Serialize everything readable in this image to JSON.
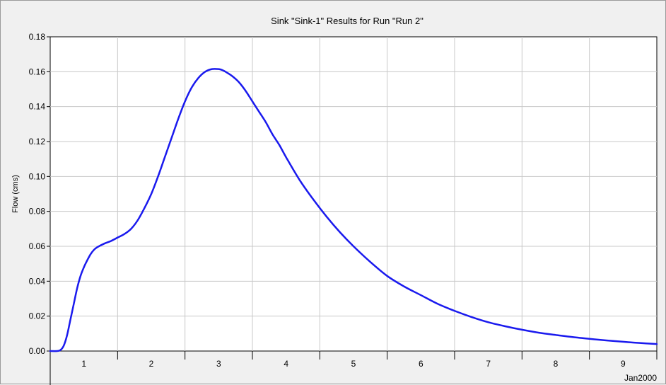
{
  "chart_data": {
    "type": "line",
    "title": "Sink \"Sink-1\" Results for Run \"Run 2\"",
    "ylabel": "Flow (cms)",
    "xlabel": "",
    "x_period_label": "Jan2000",
    "ylim": [
      0,
      0.18
    ],
    "yticks": [
      "0.00",
      "0.02",
      "0.04",
      "0.06",
      "0.08",
      "0.10",
      "0.12",
      "0.14",
      "0.16",
      "0.18"
    ],
    "xlim": [
      0.5,
      9.5
    ],
    "xtick_labels": [
      "1",
      "2",
      "3",
      "4",
      "5",
      "6",
      "7",
      "8",
      "9"
    ],
    "grid": true,
    "line_color": "#1a1aee",
    "series": [
      {
        "x": [
          0.5,
          0.6,
          0.65,
          0.7,
          0.75,
          0.8,
          0.85,
          0.9,
          0.95,
          1.0,
          1.05,
          1.1,
          1.15,
          1.2,
          1.3,
          1.4,
          1.5,
          1.6,
          1.7,
          1.8,
          1.9,
          2.0,
          2.1,
          2.2,
          2.3,
          2.4,
          2.5,
          2.6,
          2.7,
          2.8,
          2.9,
          3.0,
          3.05,
          3.1,
          3.2,
          3.3,
          3.4,
          3.5,
          3.6,
          3.7,
          3.8,
          3.9,
          4.0,
          4.2,
          4.4,
          4.6,
          4.8,
          5.0,
          5.25,
          5.5,
          5.75,
          6.0,
          6.25,
          6.5,
          6.75,
          7.0,
          7.25,
          7.5,
          7.75,
          8.0,
          8.25,
          8.5,
          8.75,
          9.0,
          9.25,
          9.5
        ],
        "y": [
          0.0,
          0.0,
          0.0005,
          0.003,
          0.009,
          0.018,
          0.027,
          0.036,
          0.043,
          0.048,
          0.052,
          0.0555,
          0.058,
          0.0595,
          0.0615,
          0.063,
          0.065,
          0.067,
          0.07,
          0.075,
          0.082,
          0.09,
          0.1,
          0.111,
          0.122,
          0.133,
          0.143,
          0.151,
          0.1565,
          0.16,
          0.1615,
          0.1615,
          0.161,
          0.16,
          0.1575,
          0.154,
          0.149,
          0.143,
          0.137,
          0.131,
          0.124,
          0.118,
          0.111,
          0.098,
          0.087,
          0.077,
          0.068,
          0.06,
          0.051,
          0.043,
          0.037,
          0.032,
          0.027,
          0.023,
          0.0195,
          0.0165,
          0.0142,
          0.0122,
          0.0105,
          0.0092,
          0.008,
          0.007,
          0.0061,
          0.0053,
          0.0046,
          0.004
        ]
      }
    ]
  }
}
